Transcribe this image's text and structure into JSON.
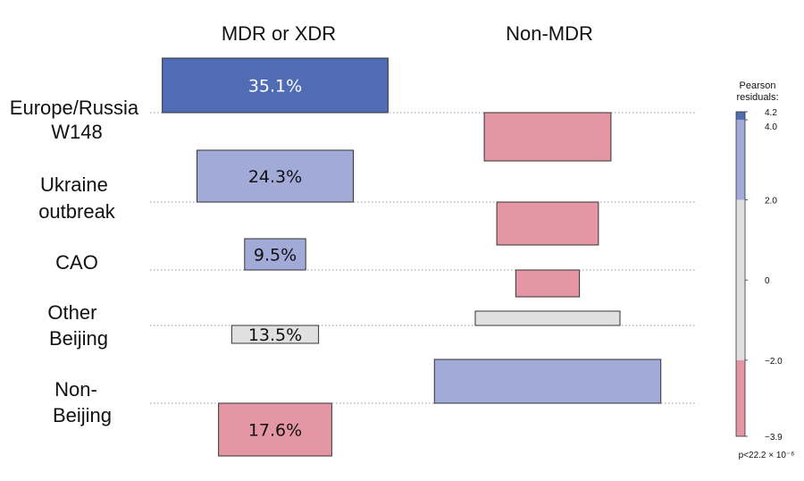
{
  "chart_data": {
    "type": "mosaic",
    "columns": [
      "MDR or XDR",
      "Non-MDR"
    ],
    "rows": [
      {
        "label": [
          "Europe/Russia",
          "W148"
        ],
        "cells": [
          {
            "width": 35.1,
            "height": 1.0,
            "residual": 4.2,
            "label": "35.1%"
          },
          {
            "width": 19.7,
            "height": 1.0,
            "residual": -2.4
          }
        ]
      },
      {
        "label": [
          "Ukraine",
          "outbreak"
        ],
        "cells": [
          {
            "width": 24.3,
            "height": 1.0,
            "residual": 3.2,
            "label": "24.3%"
          },
          {
            "width": 15.8,
            "height": 1.0,
            "residual": -2.6
          }
        ]
      },
      {
        "label": [
          "CAO"
        ],
        "cells": [
          {
            "width": 9.5,
            "height": 1.0,
            "residual": 3.1,
            "label": "9.5%"
          },
          {
            "width": 9.9,
            "height": 1.0,
            "residual": -2.2
          }
        ]
      },
      {
        "label": [
          "Other",
          "Beijing"
        ],
        "cells": [
          {
            "width": 13.5,
            "height": 1.0,
            "residual": -0.1,
            "label": "13.5%"
          },
          {
            "width": 22.5,
            "height": 1.0,
            "residual": 0.1
          }
        ]
      },
      {
        "label": [
          "Non-",
          "Beijing"
        ],
        "cells": [
          {
            "width": 17.6,
            "height": 1.0,
            "residual": -2.6,
            "label": "17.6%"
          },
          {
            "width": 35.2,
            "height": 1.0,
            "residual": 2.5
          }
        ]
      }
    ],
    "legend": {
      "title_lines": [
        "Pearson",
        "residuals:"
      ],
      "min": -3.9,
      "max": 4.2,
      "ticks": [
        4.2,
        4.0,
        2.0,
        0,
        -2.0,
        -3.9
      ],
      "tick_labels": [
        "4.2",
        "4.0",
        "2.0",
        "0",
        "−2.0",
        "−3.9"
      ],
      "bands": [
        {
          "from": 4.0,
          "to": 4.2,
          "color": "#4f6cb5"
        },
        {
          "from": 2.0,
          "to": 4.0,
          "color": "#a2aad8"
        },
        {
          "from": -2.0,
          "to": 2.0,
          "color": "#e0e0e0"
        },
        {
          "from": -3.9,
          "to": -2.0,
          "color": "#e596a5"
        }
      ]
    },
    "pvalue_text": "p<22.2 × 10⁻⁶"
  }
}
